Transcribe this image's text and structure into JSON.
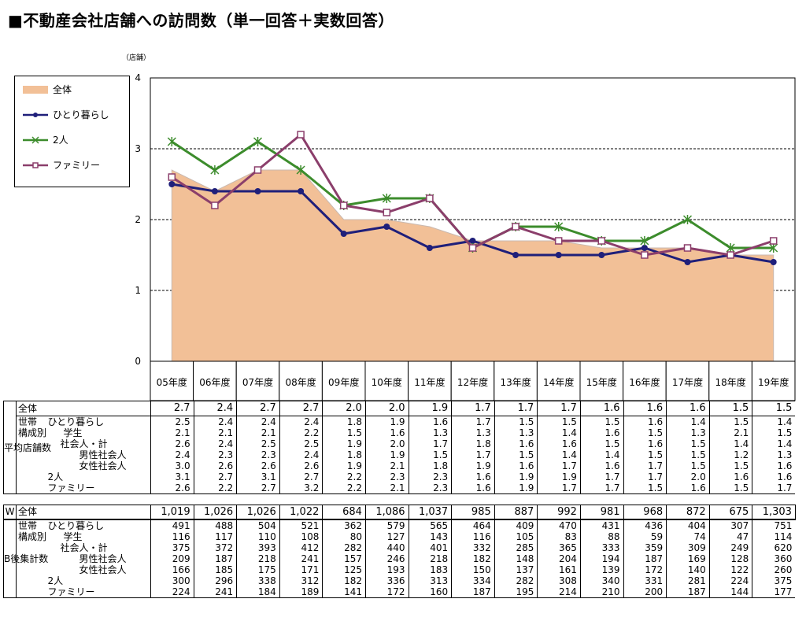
{
  "title": "■不動産会社店舗への訪問数（単一回答＋実数回答）",
  "unit": "（店舗）",
  "chart_data": {
    "type": "line",
    "categories": [
      "05年度",
      "06年度",
      "07年度",
      "08年度",
      "09年度",
      "10年度",
      "11年度",
      "12年度",
      "13年度",
      "14年度",
      "15年度",
      "16年度",
      "17年度",
      "18年度",
      "19年度"
    ],
    "ylim": [
      0,
      4
    ],
    "yticks": [
      "0",
      "1",
      "2",
      "3",
      "4"
    ],
    "grid": "dashed-horizontal",
    "legend_position": "top-left",
    "series": [
      {
        "name": "全体",
        "style": "area",
        "color": "#F2C097",
        "values": [
          2.7,
          2.4,
          2.7,
          2.7,
          2.0,
          2.0,
          1.9,
          1.7,
          1.7,
          1.7,
          1.6,
          1.6,
          1.6,
          1.5,
          1.5
        ]
      },
      {
        "name": "ひとり暮らし",
        "style": "line-dot",
        "color": "#1F1F7A",
        "values": [
          2.5,
          2.4,
          2.4,
          2.4,
          1.8,
          1.9,
          1.6,
          1.7,
          1.5,
          1.5,
          1.5,
          1.6,
          1.4,
          1.5,
          1.4
        ]
      },
      {
        "name": "2人",
        "style": "line-star",
        "color": "#3C8C2C",
        "values": [
          3.1,
          2.7,
          3.1,
          2.7,
          2.2,
          2.3,
          2.3,
          1.6,
          1.9,
          1.9,
          1.7,
          1.7,
          2.0,
          1.6,
          1.6
        ]
      },
      {
        "name": "ファミリー",
        "style": "line-square",
        "color": "#8B3E6B",
        "values": [
          2.6,
          2.2,
          2.7,
          3.2,
          2.2,
          2.1,
          2.3,
          1.6,
          1.9,
          1.7,
          1.7,
          1.5,
          1.6,
          1.5,
          1.7
        ]
      }
    ]
  },
  "table": {
    "avg_group_label": "平均店舗数",
    "w_label": "W",
    "count_group_label": "B後集計数",
    "overall_label": "全体",
    "composition_label": "世帯構成別",
    "avg_rows": [
      {
        "label": "全体",
        "values": [
          "2.7",
          "2.4",
          "2.7",
          "2.7",
          "2.0",
          "2.0",
          "1.9",
          "1.7",
          "1.7",
          "1.7",
          "1.6",
          "1.6",
          "1.6",
          "1.5",
          "1.5"
        ]
      },
      {
        "label": "ひとり暮らし",
        "values": [
          "2.5",
          "2.4",
          "2.4",
          "2.4",
          "1.8",
          "1.9",
          "1.6",
          "1.7",
          "1.5",
          "1.5",
          "1.5",
          "1.6",
          "1.4",
          "1.5",
          "1.4"
        ]
      },
      {
        "label": "学生",
        "values": [
          "2.1",
          "2.1",
          "2.1",
          "2.2",
          "1.5",
          "1.6",
          "1.3",
          "1.3",
          "1.3",
          "1.4",
          "1.6",
          "1.5",
          "1.3",
          "2.1",
          "1.5"
        ]
      },
      {
        "label": "社会人・計",
        "values": [
          "2.6",
          "2.4",
          "2.5",
          "2.5",
          "1.9",
          "2.0",
          "1.7",
          "1.8",
          "1.6",
          "1.6",
          "1.5",
          "1.6",
          "1.5",
          "1.4",
          "1.4"
        ]
      },
      {
        "label": "男性社会人",
        "values": [
          "2.4",
          "2.3",
          "2.3",
          "2.4",
          "1.8",
          "1.9",
          "1.5",
          "1.7",
          "1.5",
          "1.4",
          "1.4",
          "1.5",
          "1.5",
          "1.2",
          "1.3"
        ]
      },
      {
        "label": "女性社会人",
        "values": [
          "3.0",
          "2.6",
          "2.6",
          "2.6",
          "1.9",
          "2.1",
          "1.8",
          "1.9",
          "1.6",
          "1.7",
          "1.6",
          "1.7",
          "1.5",
          "1.5",
          "1.6"
        ]
      },
      {
        "label": "2人",
        "values": [
          "3.1",
          "2.7",
          "3.1",
          "2.7",
          "2.2",
          "2.3",
          "2.3",
          "1.6",
          "1.9",
          "1.9",
          "1.7",
          "1.7",
          "2.0",
          "1.6",
          "1.6"
        ]
      },
      {
        "label": "ファミリー",
        "values": [
          "2.6",
          "2.2",
          "2.7",
          "3.2",
          "2.2",
          "2.1",
          "2.3",
          "1.6",
          "1.9",
          "1.7",
          "1.7",
          "1.5",
          "1.6",
          "1.5",
          "1.7"
        ]
      }
    ],
    "w_row": {
      "label": "全体",
      "values": [
        "1,019",
        "1,026",
        "1,026",
        "1,022",
        "684",
        "1,086",
        "1,037",
        "985",
        "887",
        "992",
        "981",
        "968",
        "872",
        "675",
        "1,303"
      ]
    },
    "count_rows": [
      {
        "label": "ひとり暮らし",
        "values": [
          "491",
          "488",
          "504",
          "521",
          "362",
          "579",
          "565",
          "464",
          "409",
          "470",
          "431",
          "436",
          "404",
          "307",
          "751"
        ]
      },
      {
        "label": "学生",
        "values": [
          "116",
          "117",
          "110",
          "108",
          "80",
          "127",
          "143",
          "116",
          "105",
          "83",
          "88",
          "59",
          "74",
          "47",
          "114"
        ]
      },
      {
        "label": "社会人・計",
        "values": [
          "375",
          "372",
          "393",
          "412",
          "282",
          "440",
          "401",
          "332",
          "285",
          "365",
          "333",
          "359",
          "309",
          "249",
          "620"
        ]
      },
      {
        "label": "男性社会人",
        "values": [
          "209",
          "187",
          "218",
          "241",
          "157",
          "246",
          "218",
          "182",
          "148",
          "204",
          "194",
          "187",
          "169",
          "128",
          "360"
        ]
      },
      {
        "label": "女性社会人",
        "values": [
          "166",
          "185",
          "175",
          "171",
          "125",
          "193",
          "183",
          "150",
          "137",
          "161",
          "139",
          "172",
          "140",
          "122",
          "260"
        ]
      },
      {
        "label": "2人",
        "values": [
          "300",
          "296",
          "338",
          "312",
          "182",
          "336",
          "313",
          "334",
          "282",
          "308",
          "340",
          "331",
          "281",
          "224",
          "375"
        ]
      },
      {
        "label": "ファミリー",
        "values": [
          "224",
          "241",
          "184",
          "189",
          "141",
          "172",
          "160",
          "187",
          "195",
          "214",
          "210",
          "200",
          "187",
          "144",
          "177"
        ]
      }
    ]
  }
}
